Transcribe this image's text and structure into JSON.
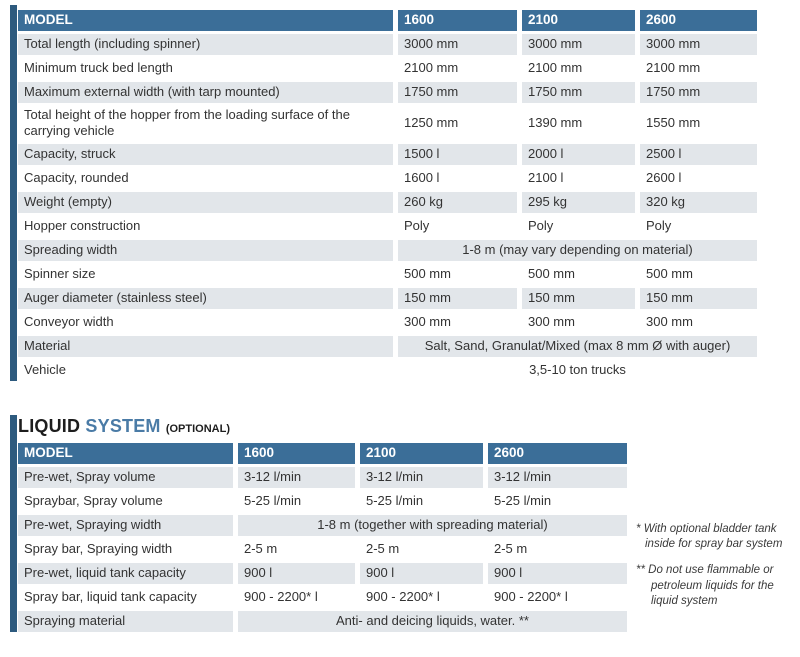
{
  "colors": {
    "header_blue": "#3b6e98",
    "side_bar_blue": "#2d5a7e",
    "row_stripe": "#e2e6ea",
    "title_accent_blue": "#4a7ba6",
    "text": "#333333"
  },
  "spec_table": {
    "header": {
      "model": "MODEL",
      "columns": [
        "1600",
        "2100",
        "2600"
      ]
    },
    "rows": [
      {
        "label": "Total length (including spinner)",
        "values": [
          "3000 mm",
          "3000 mm",
          "3000 mm"
        ]
      },
      {
        "label": "Minimum truck bed length",
        "values": [
          "2100 mm",
          "2100 mm",
          "2100 mm"
        ]
      },
      {
        "label": "Maximum external width (with tarp mounted)",
        "values": [
          "1750 mm",
          "1750 mm",
          "1750 mm"
        ]
      },
      {
        "label": "Total height of the hopper from the loading surface of the carrying vehicle",
        "values": [
          "1250 mm",
          "1390 mm",
          "1550 mm"
        ]
      },
      {
        "label": "Capacity, struck",
        "values": [
          "1500 l",
          "2000 l",
          "2500 l"
        ]
      },
      {
        "label": "Capacity, rounded",
        "values": [
          "1600 l",
          "2100 l",
          "2600 l"
        ]
      },
      {
        "label": "Weight (empty)",
        "values": [
          "260 kg",
          "295 kg",
          "320 kg"
        ]
      },
      {
        "label": "Hopper construction",
        "values": [
          "Poly",
          "Poly",
          "Poly"
        ]
      },
      {
        "label": "Spreading width",
        "span": "1-8 m (may vary depending on material)"
      },
      {
        "label": "Spinner size",
        "values": [
          "500 mm",
          "500 mm",
          "500 mm"
        ]
      },
      {
        "label": "Auger diameter (stainless steel)",
        "values": [
          "150 mm",
          "150 mm",
          "150 mm"
        ]
      },
      {
        "label": "Conveyor width",
        "values": [
          "300 mm",
          "300 mm",
          "300 mm"
        ]
      },
      {
        "label": "Material",
        "span": "Salt, Sand, Granulat/Mixed (max 8 mm Ø with auger)"
      },
      {
        "label": "Vehicle",
        "span": "3,5-10 ton trucks"
      }
    ]
  },
  "liquid_section": {
    "title": {
      "word1": "LIQUID",
      "word2": "SYSTEM",
      "suffix": "(OPTIONAL)"
    },
    "header": {
      "model": "MODEL",
      "columns": [
        "1600",
        "2100",
        "2600"
      ]
    },
    "rows": [
      {
        "label": "Pre-wet, Spray volume",
        "values": [
          "3-12 l/min",
          "3-12 l/min",
          "3-12 l/min"
        ]
      },
      {
        "label": "Spraybar, Spray volume",
        "values": [
          "5-25 l/min",
          "5-25 l/min",
          "5-25 l/min"
        ]
      },
      {
        "label": "Pre-wet, Spraying width",
        "span": "1-8 m (together with spreading material)"
      },
      {
        "label": "Spray bar, Spraying width",
        "values": [
          "2-5 m",
          "2-5 m",
          "2-5 m"
        ]
      },
      {
        "label": "Pre-wet, liquid tank capacity",
        "values": [
          "900 l",
          "900 l",
          "900 l"
        ]
      },
      {
        "label": "Spray bar, liquid tank capacity",
        "values": [
          "900 - 2200* l",
          "900 - 2200* l",
          "900 - 2200* l"
        ]
      },
      {
        "label": "Spraying material",
        "span": "Anti- and deicing liquids, water. **"
      }
    ]
  },
  "footnotes": [
    {
      "marker": "*",
      "text": "With optional bladder tank inside for spray bar system"
    },
    {
      "marker": "**",
      "text": "Do not use flammable or petroleum liquids for the liquid system"
    }
  ]
}
